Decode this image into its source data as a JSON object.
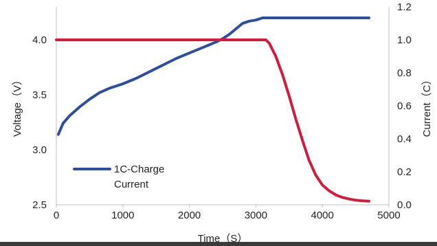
{
  "chart_data": {
    "type": "line",
    "xlabel": "Time（S）",
    "ylabel_left": "Voltage（V）",
    "ylabel_right": "Current（C）",
    "xlim": [
      0,
      5000
    ],
    "ylim_left": [
      2.5,
      4.3
    ],
    "ylim_right": [
      0.0,
      1.2
    ],
    "x_ticks": [
      "0",
      "1000",
      "2000",
      "3000",
      "4000",
      "5000"
    ],
    "y_left_ticks": [
      "2.5",
      "3.0",
      "3.5",
      "4.0"
    ],
    "y_right_ticks": [
      "0.0",
      "0.2",
      "0.4",
      "0.6",
      "0.8",
      "1.0",
      "1.2"
    ],
    "grid": false,
    "legend_position": "bottom-left",
    "series": [
      {
        "name": "1C-Charge",
        "axis": "left",
        "color": "#2f4f9a",
        "x": [
          30,
          100,
          200,
          350,
          500,
          650,
          800,
          1000,
          1200,
          1400,
          1600,
          1800,
          2000,
          2200,
          2400,
          2500,
          2600,
          2700,
          2800,
          2900,
          3000,
          3100,
          3200,
          3500,
          4000,
          4500,
          4700
        ],
        "y": [
          3.14,
          3.24,
          3.31,
          3.39,
          3.46,
          3.52,
          3.56,
          3.6,
          3.65,
          3.71,
          3.77,
          3.83,
          3.88,
          3.93,
          3.98,
          4.01,
          4.05,
          4.1,
          4.15,
          4.17,
          4.18,
          4.2,
          4.2,
          4.2,
          4.2,
          4.2,
          4.2
        ]
      },
      {
        "name": "Current",
        "axis": "right",
        "color": "#c8203e",
        "x": [
          0,
          500,
          1000,
          1500,
          2000,
          2500,
          3000,
          3150,
          3200,
          3300,
          3400,
          3500,
          3600,
          3700,
          3800,
          3900,
          4000,
          4100,
          4200,
          4300,
          4400,
          4500,
          4600,
          4700
        ],
        "y": [
          1.0,
          1.0,
          1.0,
          1.0,
          1.0,
          1.0,
          1.0,
          1.0,
          0.98,
          0.9,
          0.79,
          0.66,
          0.52,
          0.39,
          0.27,
          0.18,
          0.12,
          0.085,
          0.06,
          0.045,
          0.035,
          0.028,
          0.024,
          0.022
        ]
      }
    ]
  }
}
